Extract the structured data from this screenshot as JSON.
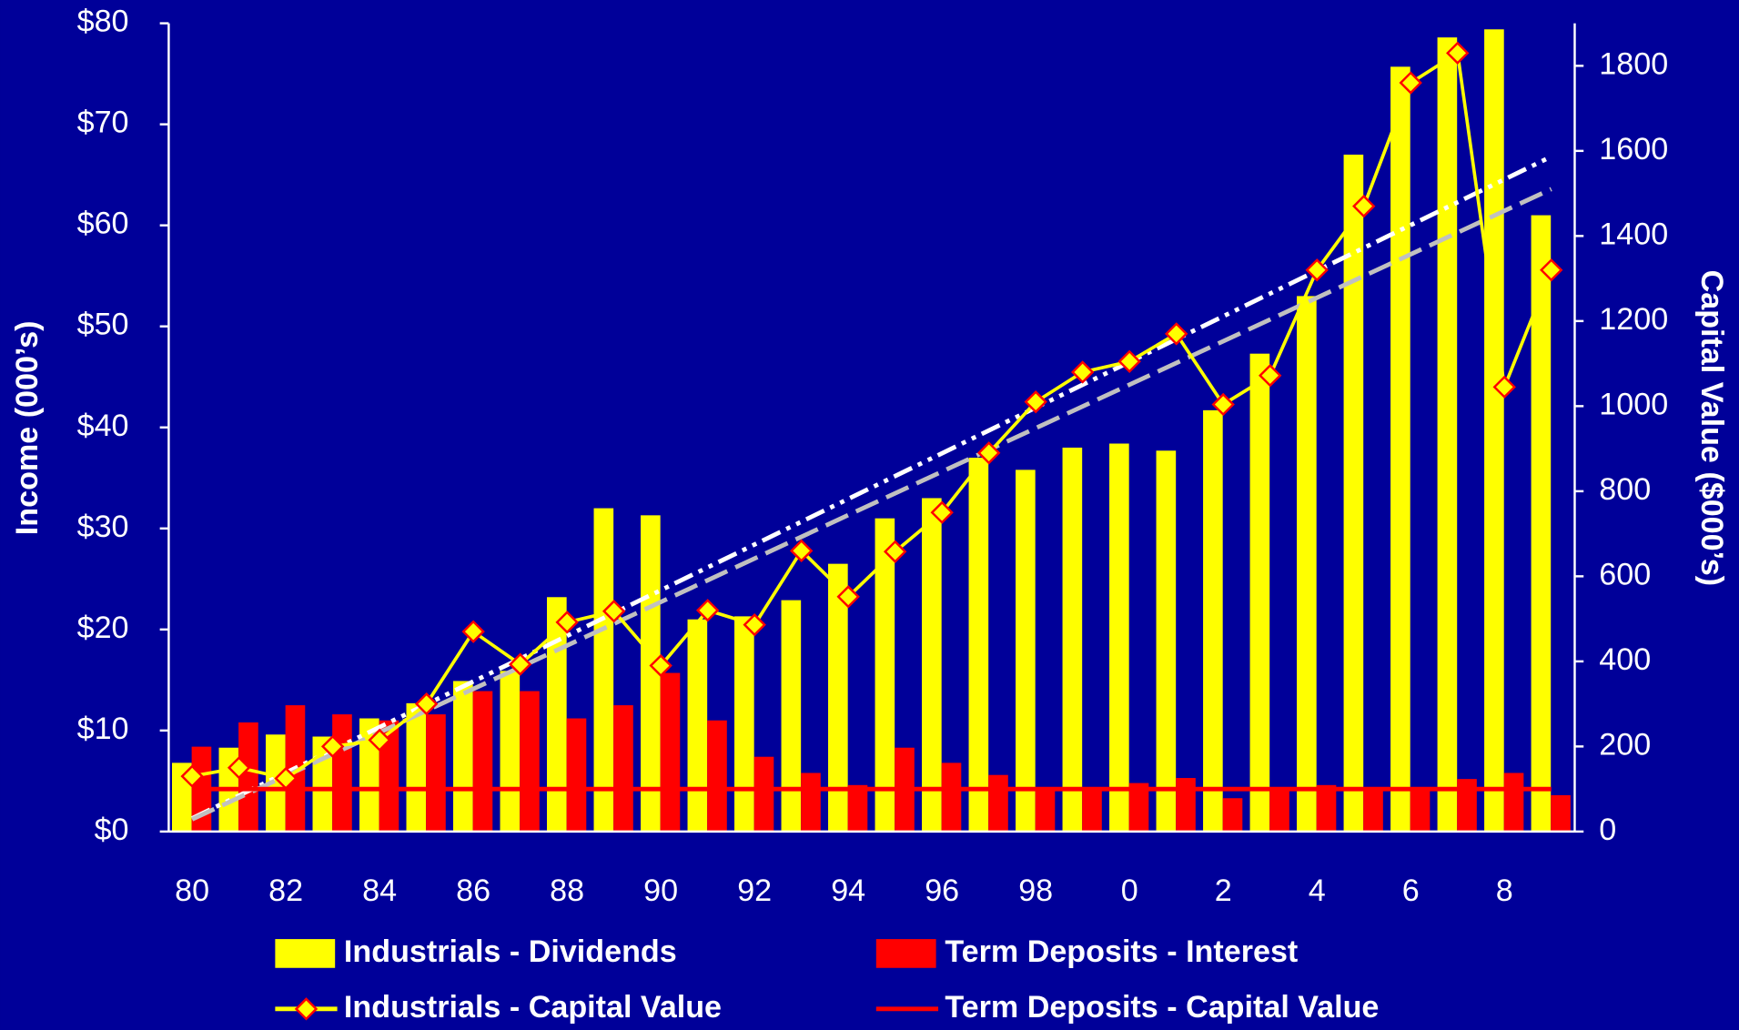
{
  "chart_data": {
    "type": "bar",
    "y_label": "Income (000’s)",
    "y2_label": "Capital Value ($000’s)",
    "categories": [
      "80",
      null,
      "82",
      null,
      "84",
      null,
      "86",
      null,
      "88",
      null,
      "90",
      null,
      "92",
      null,
      "94",
      null,
      "96",
      null,
      "98",
      null,
      "0",
      null,
      "2",
      null,
      "4",
      null,
      "6",
      null,
      "8",
      null
    ],
    "ylim": [
      0,
      80
    ],
    "yticks": [
      {
        "value": 0,
        "label": "$0"
      },
      {
        "value": 10,
        "label": "$10"
      },
      {
        "value": 20,
        "label": "$20"
      },
      {
        "value": 30,
        "label": "$30"
      },
      {
        "value": 40,
        "label": "$40"
      },
      {
        "value": 50,
        "label": "$50"
      },
      {
        "value": 60,
        "label": "$60"
      },
      {
        "value": 70,
        "label": "$70"
      },
      {
        "value": 80,
        "label": "$80"
      }
    ],
    "y2lim": [
      0,
      1900
    ],
    "y2ticks": [
      0,
      200,
      400,
      600,
      800,
      1000,
      1200,
      1400,
      1600,
      1800
    ],
    "series": [
      {
        "name": "Industrials - Dividends",
        "type": "bar",
        "color": "#ffff00",
        "values": [
          6.8,
          8.3,
          9.6,
          9.4,
          11.2,
          12.7,
          14.9,
          15.9,
          23.2,
          32.0,
          31.3,
          21.0,
          21.3,
          22.9,
          26.5,
          31.0,
          33.0,
          37.0,
          35.8,
          38.0,
          38.4,
          37.7,
          41.7,
          47.3,
          53.0,
          67.0,
          75.7,
          78.6,
          79.4,
          61.0
        ]
      },
      {
        "name": "Term Deposits - Interest",
        "type": "bar",
        "color": "#ff0000",
        "values": [
          8.4,
          10.8,
          12.5,
          11.6,
          11.0,
          11.6,
          13.9,
          13.9,
          11.2,
          12.5,
          15.7,
          11.0,
          7.4,
          5.8,
          4.6,
          8.3,
          6.8,
          5.6,
          4.4,
          4.3,
          4.8,
          5.3,
          3.3,
          4.3,
          4.6,
          4.4,
          4.4,
          5.2,
          5.8,
          3.6
        ]
      },
      {
        "name": "Industrials - Capital Value",
        "type": "line",
        "axis": "y2",
        "color": "#ffff00",
        "marker_color": "#ff0000",
        "values": [
          130,
          150,
          125,
          200,
          215,
          300,
          470,
          393,
          492,
          518,
          390,
          520,
          486,
          660,
          552,
          658,
          750,
          890,
          1010,
          1080,
          1105,
          1170,
          1004,
          1072,
          1320,
          1470,
          1760,
          1830,
          1045,
          1320
        ]
      },
      {
        "name": "Term Deposits - Capital Value",
        "type": "line",
        "axis": "y2",
        "color": "#ff0000",
        "values": [
          100,
          100,
          100,
          100,
          100,
          100,
          100,
          100,
          100,
          100,
          100,
          100,
          100,
          100,
          100,
          100,
          100,
          100,
          100,
          100,
          100,
          100,
          100,
          100,
          100,
          100,
          100,
          100,
          100,
          100
        ]
      }
    ]
  }
}
